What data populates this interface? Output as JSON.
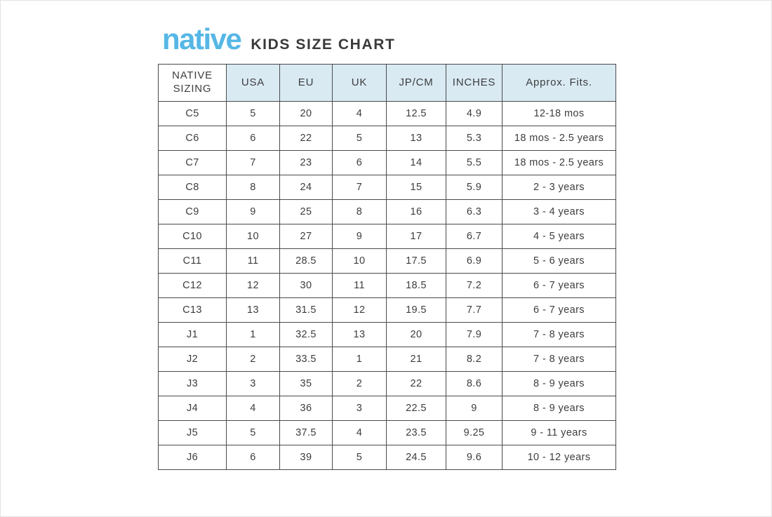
{
  "header": {
    "logo_text": "native",
    "logo_color": "#56b7e6",
    "title": "KIDS SIZE CHART"
  },
  "chart_data": {
    "type": "table",
    "title": "native KIDS SIZE CHART",
    "columns": [
      "NATIVE SIZING",
      "USA",
      "EU",
      "UK",
      "JP/CM",
      "INCHES",
      "Approx. Fits."
    ],
    "rows": [
      [
        "C5",
        "5",
        "20",
        "4",
        "12.5",
        "4.9",
        "12-18 mos"
      ],
      [
        "C6",
        "6",
        "22",
        "5",
        "13",
        "5.3",
        "18 mos - 2.5 years"
      ],
      [
        "C7",
        "7",
        "23",
        "6",
        "14",
        "5.5",
        "18 mos - 2.5 years"
      ],
      [
        "C8",
        "8",
        "24",
        "7",
        "15",
        "5.9",
        "2 - 3 years"
      ],
      [
        "C9",
        "9",
        "25",
        "8",
        "16",
        "6.3",
        "3 - 4 years"
      ],
      [
        "C10",
        "10",
        "27",
        "9",
        "17",
        "6.7",
        "4 - 5 years"
      ],
      [
        "C11",
        "11",
        "28.5",
        "10",
        "17.5",
        "6.9",
        "5 - 6 years"
      ],
      [
        "C12",
        "12",
        "30",
        "11",
        "18.5",
        "7.2",
        "6 - 7 years"
      ],
      [
        "C13",
        "13",
        "31.5",
        "12",
        "19.5",
        "7.7",
        "6 - 7 years"
      ],
      [
        "J1",
        "1",
        "32.5",
        "13",
        "20",
        "7.9",
        "7 - 8 years"
      ],
      [
        "J2",
        "2",
        "33.5",
        "1",
        "21",
        "8.2",
        "7 - 8 years"
      ],
      [
        "J3",
        "3",
        "35",
        "2",
        "22",
        "8.6",
        "8 - 9 years"
      ],
      [
        "J4",
        "4",
        "36",
        "3",
        "22.5",
        "9",
        "8 - 9 years"
      ],
      [
        "J5",
        "5",
        "37.5",
        "4",
        "23.5",
        "9.25",
        "9 - 11 years"
      ],
      [
        "J6",
        "6",
        "39",
        "5",
        "24.5",
        "9.6",
        "10 - 12 years"
      ]
    ],
    "colors": {
      "header_background": "#d9eaf3",
      "first_header_cell_background": "#ffffff",
      "border": "#4a4a4a",
      "text": "#3d3d3d",
      "logo_blue": "#56b7e6"
    },
    "layout": {
      "grid": "on",
      "legend": "none"
    }
  }
}
